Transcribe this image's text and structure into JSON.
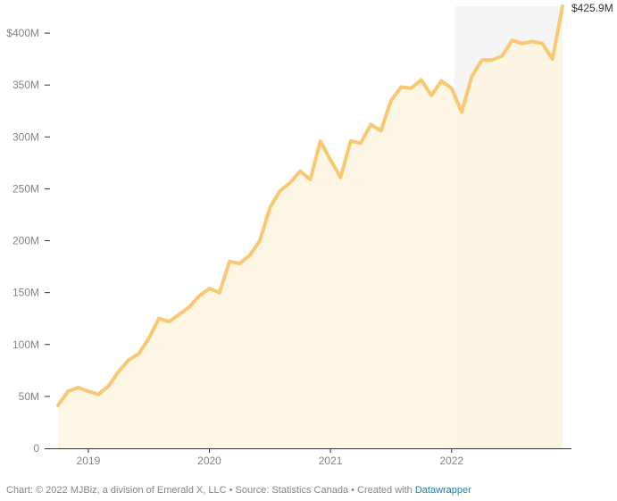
{
  "colors": {
    "line": "#f8c873",
    "area": "#fef5e0",
    "highlight_band": "#f5f5f5",
    "axis": "#333333",
    "tick_text": "#858585",
    "link": "#1d81a2"
  },
  "chart_data": {
    "type": "area",
    "title": "",
    "xlabel": "",
    "ylabel": "",
    "ylim": [
      0,
      425.9
    ],
    "y_ticks": [
      {
        "value": 0,
        "label": "0"
      },
      {
        "value": 50,
        "label": "50M"
      },
      {
        "value": 100,
        "label": "100M"
      },
      {
        "value": 150,
        "label": "150M"
      },
      {
        "value": 200,
        "label": "200M"
      },
      {
        "value": 250,
        "label": "250M"
      },
      {
        "value": 300,
        "label": "300M"
      },
      {
        "value": 350,
        "label": "350M"
      },
      {
        "value": 400,
        "label": "$400M"
      }
    ],
    "x_ticks": [
      {
        "value": "2019-01",
        "label": "2019"
      },
      {
        "value": "2020-01",
        "label": "2020"
      },
      {
        "value": "2021-01",
        "label": "2021"
      },
      {
        "value": "2022-01",
        "label": "2022"
      }
    ],
    "highlight_range": [
      "2022-01",
      "2022-11"
    ],
    "end_label": "$425.9M",
    "series": [
      {
        "x": [
          "2018-10",
          "2018-11",
          "2018-12",
          "2019-01",
          "2019-02",
          "2019-03",
          "2019-04",
          "2019-05",
          "2019-06",
          "2019-07",
          "2019-08",
          "2019-09",
          "2019-10",
          "2019-11",
          "2019-12",
          "2020-01",
          "2020-02",
          "2020-03",
          "2020-04",
          "2020-05",
          "2020-06",
          "2020-07",
          "2020-08",
          "2020-09",
          "2020-10",
          "2020-11",
          "2020-12",
          "2021-01",
          "2021-02",
          "2021-03",
          "2021-04",
          "2021-05",
          "2021-06",
          "2021-07",
          "2021-08",
          "2021-09",
          "2021-10",
          "2021-11",
          "2021-12",
          "2022-01",
          "2022-02",
          "2022-03",
          "2022-04",
          "2022-05",
          "2022-06",
          "2022-07",
          "2022-08",
          "2022-09",
          "2022-10",
          "2022-11",
          "2022-12"
        ],
        "values": [
          41.5,
          55,
          58.5,
          55,
          52,
          60,
          74,
          85,
          91,
          106,
          125,
          122,
          129,
          136,
          147,
          154,
          150,
          180,
          178,
          186,
          200,
          232,
          248,
          256,
          267,
          259,
          296,
          278,
          261,
          296,
          294,
          312,
          306,
          335,
          348,
          347,
          355,
          340,
          354,
          347,
          324,
          358,
          374,
          374,
          378,
          393,
          390,
          392,
          390,
          375,
          425.9
        ]
      }
    ]
  },
  "footer": {
    "credit": "Chart: © 2022 MJBiz, a division of Emerald X, LLC • Source: Statistics Canada • Created with ",
    "link_text": "Datawrapper"
  }
}
